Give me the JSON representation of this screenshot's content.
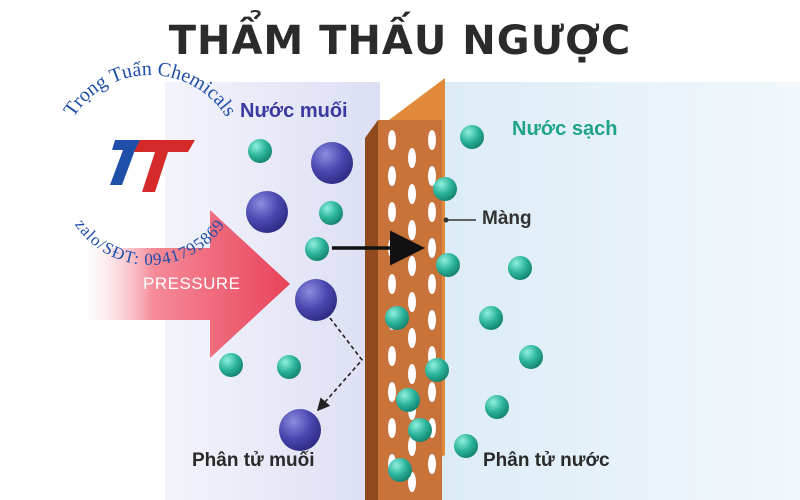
{
  "title": "THẨM THẤU NGƯỢC",
  "labels": {
    "salt_water": "Nước muối",
    "clean_water": "Nước sạch",
    "membrane": "Màng",
    "pressure": "PRESSURE",
    "salt_molecule": "Phân tử muối",
    "water_molecule": "Phân tử nước"
  },
  "watermark": {
    "company": "Trọng Tuấn Chemicals",
    "contact": "zalo/SĐT: 0941795869",
    "logo_letters": "TT"
  },
  "colors": {
    "salt_side_bg": "#e4e6f7",
    "clean_side_bg": "#e6f3fa",
    "membrane": "#c8733a",
    "membrane_top": "#e08a3a",
    "salt_ion": "#3b3aa0",
    "water_molecule": "#2bb39b",
    "pressure_arrow": "#e8435a",
    "watermark_blue": "#1f4fa8",
    "watermark_red": "#d62a2a",
    "title": "#2b2b2b"
  },
  "icons": {
    "logo": "trong-tuan-tt-logo"
  }
}
